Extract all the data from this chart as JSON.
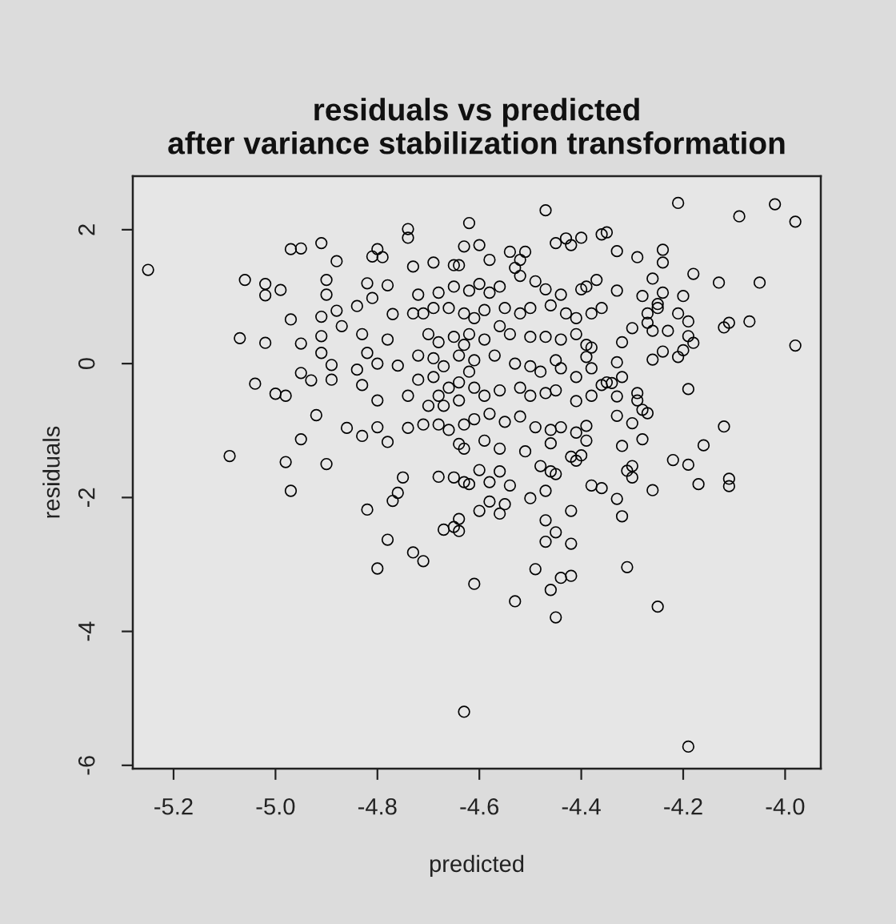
{
  "chart_data": {
    "type": "scatter",
    "title": "residuals vs predicted\nafter variance stabilization transformation",
    "xlabel": "predicted",
    "ylabel": "residuals",
    "color": "#000000",
    "marker": "circle",
    "xlim": [
      -5.28,
      -3.93
    ],
    "ylim": [
      -6.05,
      2.8
    ],
    "xticks": [
      -5.2,
      {
        "value": -5,
        "label": "-5.0"
      },
      -4.8,
      -4.6,
      -4.4,
      -4.2,
      {
        "value": -4,
        "label": "-4.0"
      }
    ],
    "yticks": [
      -6,
      -4,
      -2,
      0,
      2
    ],
    "x": [
      -5.25,
      -5.06,
      -4.97,
      -4.95,
      -4.91,
      -4.88,
      -5.02,
      -4.99,
      -5.02,
      -4.9,
      -4.9,
      -4.97,
      -5.07,
      -5.02,
      -4.95,
      -4.91,
      -4.88,
      -4.87,
      -4.91,
      -4.91,
      -4.89,
      -4.95,
      -4.93,
      -4.89,
      -5.04,
      -5.0,
      -4.98,
      -4.92,
      -4.95,
      -5.09,
      -4.98,
      -4.9,
      -4.86,
      -4.83,
      -4.8,
      -4.78,
      -4.74,
      -4.82,
      -4.78,
      -4.8,
      -4.74,
      -4.74,
      -4.84,
      -4.81,
      -4.83,
      -4.82,
      -4.84,
      -4.83,
      -4.8,
      -4.8,
      -4.78,
      -4.77,
      -4.76,
      -4.73,
      -4.69,
      -4.62,
      -4.63,
      -4.64,
      -4.7,
      -4.67,
      -4.64,
      -4.63,
      -4.81,
      -4.79,
      -4.47,
      -4.21,
      -4.09,
      -4.02,
      -3.98,
      -4.35,
      -4.36,
      -4.4,
      -4.45,
      -4.43,
      -4.42,
      -4.33,
      -4.29,
      -4.24,
      -4.24,
      -4.18,
      -4.13,
      -4.05,
      -4.26,
      -4.24,
      -4.2,
      -4.07,
      -4.12,
      -4.11,
      -3.98,
      -4.19,
      -4.12,
      -4.16,
      -4.22,
      -4.19,
      -4.32,
      -4.28,
      -4.33,
      -4.3,
      -4.21,
      -4.19,
      -4.19,
      -4.18,
      -4.2,
      -4.21,
      -4.24,
      -4.23,
      -4.25,
      -4.25,
      -4.28,
      -4.27,
      -4.27,
      -4.26,
      -4.3,
      -4.32,
      -4.26,
      -4.33,
      -4.32,
      -4.34,
      -4.33,
      -4.29,
      -4.29,
      -4.28,
      -4.27,
      -4.38,
      -4.35,
      -4.36,
      -4.39,
      -4.39,
      -4.4,
      -4.41,
      -4.38,
      -4.39,
      -4.38,
      -4.33,
      -4.37,
      -4.97,
      -4.82,
      -4.75,
      -4.76,
      -4.77,
      -4.78,
      -4.8,
      -4.73,
      -4.71,
      -4.68,
      -4.65,
      -4.63,
      -4.62,
      -4.67,
      -4.65,
      -4.64,
      -4.64,
      -4.61,
      -4.63,
      -4.5,
      -4.47,
      -4.6,
      -4.58,
      -4.56,
      -4.55,
      -4.58,
      -4.54,
      -4.6,
      -4.56,
      -4.47,
      -4.47,
      -4.45,
      -4.42,
      -4.42,
      -4.49,
      -4.44,
      -4.42,
      -4.46,
      -4.53,
      -4.45,
      -4.38,
      -4.36,
      -4.33,
      -4.32,
      -4.31,
      -4.25,
      -4.26,
      -4.31,
      -4.3,
      -4.3,
      -4.17,
      -4.11,
      -4.11,
      -4.48,
      -4.46,
      -4.45,
      -4.19,
      -4.6,
      -4.54,
      -4.51,
      -4.52,
      -4.53,
      -4.52,
      -4.58,
      -4.6,
      -4.58,
      -4.56,
      -4.49,
      -4.47,
      -4.44,
      -4.4,
      -4.39,
      -4.59,
      -4.55,
      -4.52,
      -4.5,
      -4.46,
      -4.43,
      -4.41,
      -4.38,
      -4.36,
      -4.62,
      -4.59,
      -4.56,
      -4.54,
      -4.5,
      -4.47,
      -4.44,
      -4.41,
      -4.39,
      -4.61,
      -4.57,
      -4.53,
      -4.5,
      -4.48,
      -4.45,
      -4.44,
      -4.41,
      -4.59,
      -4.56,
      -4.52,
      -4.5,
      -4.47,
      -4.45,
      -4.41,
      -4.61,
      -4.58,
      -4.55,
      -4.52,
      -4.49,
      -4.46,
      -4.44,
      -4.41,
      -4.59,
      -4.56,
      -4.51,
      -4.46,
      -4.42,
      -4.71,
      -4.69,
      -4.66,
      -4.63,
      -4.61,
      -4.7,
      -4.68,
      -4.65,
      -4.63,
      -4.72,
      -4.69,
      -4.67,
      -4.64,
      -4.62,
      -4.72,
      -4.69,
      -4.66,
      -4.64,
      -4.61,
      -4.74,
      -4.68,
      -4.64,
      -4.63,
      -4.71,
      -4.68,
      -4.66,
      -4.72,
      -4.68,
      -4.65,
      -4.62,
      -4.73,
      -4.65
    ],
    "values": [
      1.4,
      1.25,
      1.71,
      1.72,
      1.8,
      1.53,
      1.19,
      1.1,
      1.02,
      1.25,
      1.03,
      0.66,
      0.38,
      0.31,
      0.3,
      0.7,
      0.79,
      0.56,
      0.41,
      0.16,
      -0.02,
      -0.14,
      -0.25,
      -0.24,
      -0.3,
      -0.45,
      -0.48,
      -0.77,
      -1.13,
      -1.38,
      -1.47,
      -1.5,
      -0.96,
      -1.08,
      -0.95,
      -1.17,
      -0.96,
      1.2,
      1.17,
      1.71,
      2.01,
      1.88,
      0.86,
      0.98,
      0.44,
      0.16,
      -0.09,
      -0.32,
      -0.55,
      0.0,
      0.36,
      0.74,
      -0.03,
      1.45,
      1.51,
      2.1,
      1.75,
      1.47,
      -0.63,
      -0.63,
      -1.2,
      -1.27,
      1.6,
      1.59,
      2.29,
      2.4,
      2.2,
      2.38,
      2.12,
      1.96,
      1.93,
      1.88,
      1.8,
      1.87,
      1.77,
      1.68,
      1.59,
      1.7,
      1.51,
      1.34,
      1.21,
      1.21,
      1.27,
      1.06,
      1.01,
      0.63,
      0.54,
      0.61,
      0.27,
      -0.38,
      -0.94,
      -1.22,
      -1.44,
      -1.51,
      -1.23,
      -1.13,
      -0.78,
      -0.89,
      0.75,
      0.63,
      0.41,
      0.31,
      0.2,
      0.1,
      0.18,
      0.49,
      0.89,
      0.83,
      1.01,
      0.75,
      0.61,
      0.49,
      0.53,
      0.32,
      0.06,
      0.02,
      -0.2,
      -0.29,
      -0.49,
      -0.44,
      -0.55,
      -0.69,
      -0.74,
      -0.48,
      -0.28,
      -0.32,
      -0.93,
      -1.15,
      -1.37,
      -1.45,
      -0.07,
      0.1,
      0.24,
      1.09,
      1.25,
      -1.9,
      -2.18,
      -1.7,
      -1.93,
      -2.05,
      -2.63,
      -3.06,
      -2.82,
      -2.95,
      -1.69,
      -1.7,
      -1.77,
      -1.8,
      -2.48,
      -2.44,
      -2.32,
      -2.5,
      -3.29,
      -5.2,
      -2.01,
      -1.9,
      -2.2,
      -2.06,
      -2.24,
      -2.1,
      -1.77,
      -1.82,
      -1.59,
      -1.61,
      -2.34,
      -2.66,
      -2.52,
      -2.2,
      -2.69,
      -3.07,
      -3.2,
      -3.17,
      -3.38,
      -3.55,
      -3.79,
      -1.82,
      -1.86,
      -2.02,
      -2.28,
      -3.04,
      -3.63,
      -1.89,
      -1.6,
      -1.53,
      -1.7,
      -1.8,
      -1.72,
      -1.83,
      -1.53,
      -1.61,
      -1.65,
      -5.72,
      1.77,
      1.67,
      1.67,
      1.55,
      1.43,
      1.31,
      1.55,
      1.19,
      1.06,
      1.15,
      1.23,
      1.11,
      1.03,
      1.11,
      1.15,
      0.8,
      0.83,
      0.75,
      0.83,
      0.87,
      0.75,
      0.68,
      0.75,
      0.83,
      0.44,
      0.36,
      0.56,
      0.44,
      0.4,
      0.4,
      0.36,
      0.44,
      0.28,
      0.05,
      0.12,
      0.0,
      -0.04,
      -0.12,
      0.05,
      -0.07,
      -0.2,
      -0.48,
      -0.4,
      -0.36,
      -0.48,
      -0.44,
      -0.4,
      -0.56,
      -0.83,
      -0.75,
      -0.87,
      -0.79,
      -0.95,
      -0.99,
      -0.95,
      -1.03,
      -1.15,
      -1.27,
      -1.31,
      -1.19,
      -1.39,
      0.75,
      0.83,
      0.83,
      0.75,
      0.68,
      0.44,
      0.32,
      0.4,
      0.28,
      0.12,
      0.08,
      -0.04,
      0.12,
      -0.12,
      -0.24,
      -0.2,
      -0.36,
      -0.28,
      -0.36,
      -0.48,
      -0.48,
      -0.55,
      -0.91,
      -0.91,
      -0.91,
      -0.99,
      1.03,
      1.06,
      1.15,
      1.09,
      0.75,
      1.47
    ]
  }
}
